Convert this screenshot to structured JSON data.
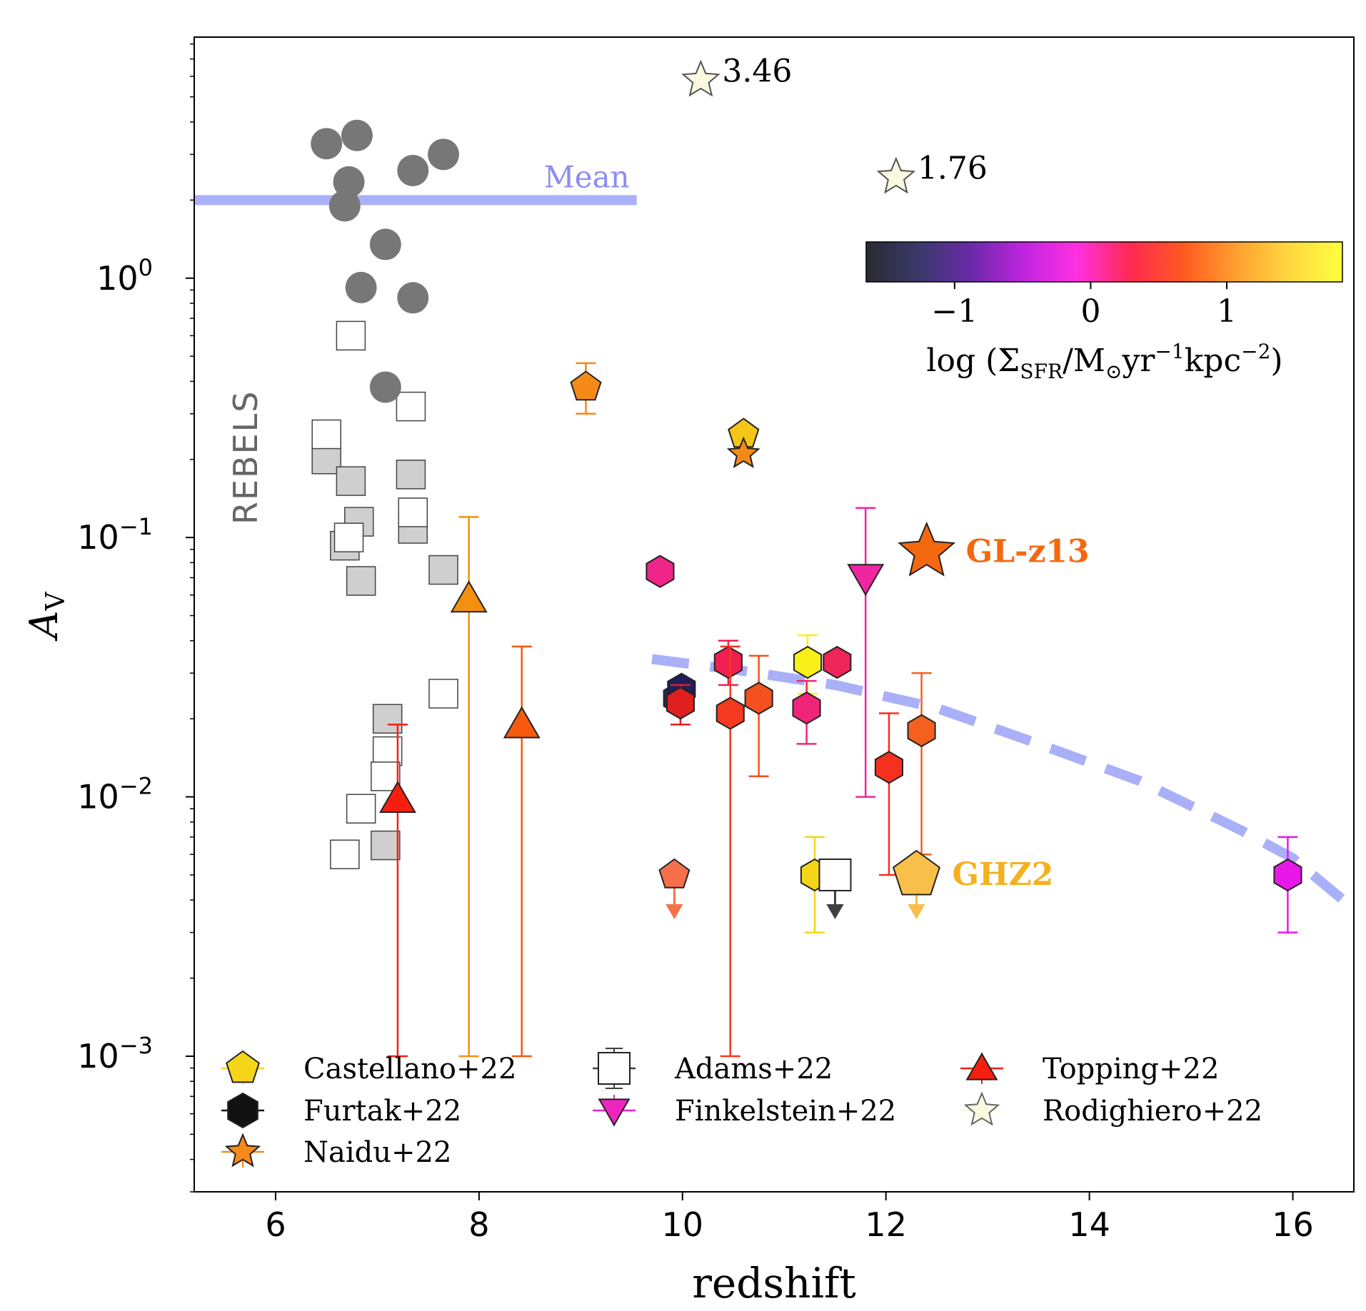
{
  "chart_data": {
    "type": "scatter",
    "title": "",
    "xlabel": "redshift",
    "ylabel": "A",
    "ylabel_sub": "V",
    "yscale": "log",
    "xlim": [
      5.2,
      16.6
    ],
    "ylim": [
      0.0003,
      8.5
    ],
    "xticks": [
      {
        "value": 6,
        "label": "6"
      },
      {
        "value": 8,
        "label": "8"
      },
      {
        "value": 10,
        "label": "10"
      },
      {
        "value": 12,
        "label": "12"
      },
      {
        "value": 14,
        "label": "14"
      },
      {
        "value": 16,
        "label": "16"
      }
    ],
    "yticks": [
      {
        "value": 1,
        "base": "10",
        "exp": "0"
      },
      {
        "value": 0.1,
        "base": "10",
        "exp": "−1"
      },
      {
        "value": 0.01,
        "base": "10",
        "exp": "−2"
      },
      {
        "value": 0.001,
        "base": "10",
        "exp": "−3"
      }
    ],
    "mean_line": {
      "label": "Mean",
      "value": 2.0,
      "x_start": 5.2,
      "x_end": 9.55,
      "color": "#aab0f8"
    },
    "model_curve": {
      "color": "#aab0f8",
      "points": [
        [
          9.7,
          0.034
        ],
        [
          10.5,
          0.031
        ],
        [
          11.5,
          0.027
        ],
        [
          12.5,
          0.022
        ],
        [
          13.5,
          0.016
        ],
        [
          14.5,
          0.0115
        ],
        [
          15.5,
          0.0074
        ],
        [
          16.0,
          0.0058
        ],
        [
          16.6,
          0.0037
        ]
      ]
    },
    "rebels_label": "REBELS",
    "rebels_circles": [
      [
        6.5,
        3.3
      ],
      [
        6.8,
        3.55
      ],
      [
        6.72,
        2.35
      ],
      [
        6.68,
        1.9
      ],
      [
        7.35,
        2.6
      ],
      [
        7.65,
        3.0
      ],
      [
        7.08,
        1.35
      ],
      [
        6.84,
        0.92
      ],
      [
        7.35,
        0.84
      ],
      [
        7.08,
        0.38
      ]
    ],
    "rebels_squares_open": [
      [
        6.74,
        0.6
      ],
      [
        7.33,
        0.32
      ],
      [
        6.5,
        0.25
      ],
      [
        7.35,
        0.125
      ],
      [
        6.72,
        0.1
      ],
      [
        7.65,
        0.025
      ],
      [
        7.1,
        0.015
      ],
      [
        7.08,
        0.012
      ],
      [
        6.84,
        0.009
      ],
      [
        6.68,
        0.006
      ]
    ],
    "rebels_squares_filled": [
      [
        6.5,
        0.2
      ],
      [
        6.74,
        0.165
      ],
      [
        7.33,
        0.175
      ],
      [
        6.82,
        0.115
      ],
      [
        7.35,
        0.108
      ],
      [
        6.68,
        0.093
      ],
      [
        6.84,
        0.068
      ],
      [
        7.65,
        0.075
      ],
      [
        7.1,
        0.02
      ],
      [
        7.08,
        0.0065
      ]
    ],
    "jwst_points": [
      {
        "survey": "Naidu+22",
        "marker": "pentagon",
        "x": 9.05,
        "y": 0.38,
        "lo": 0.3,
        "hi": 0.47,
        "color": "#f58a18"
      },
      {
        "survey": "Castellano+22",
        "marker": "pentagon",
        "x": 10.6,
        "y": 0.25,
        "color": "#f5c518"
      },
      {
        "survey": "Naidu+22",
        "marker": "star",
        "x": 10.6,
        "y": 0.21,
        "color": "#f58a18"
      },
      {
        "survey": "Topping+22",
        "marker": "triangle-up",
        "x": 7.9,
        "y": 0.058,
        "lo": 0.001,
        "hi": 0.12,
        "color": "#f5900f"
      },
      {
        "survey": "Topping+22",
        "marker": "triangle-up",
        "x": 8.42,
        "y": 0.019,
        "lo": 0.001,
        "hi": 0.038,
        "color": "#f55a0f"
      },
      {
        "survey": "Topping+22",
        "marker": "triangle-up",
        "x": 7.2,
        "y": 0.0098,
        "lo": 0.001,
        "hi": 0.019,
        "color": "#f51f0f"
      },
      {
        "survey": "Furtak+22",
        "marker": "hexagon",
        "x": 9.78,
        "y": 0.074,
        "color": "#f0258a"
      },
      {
        "survey": "Furtak+22",
        "marker": "hexagon",
        "x": 9.95,
        "y": 0.024,
        "color": "#2a2a70"
      },
      {
        "survey": "Furtak+22",
        "marker": "hexagon",
        "x": 9.99,
        "y": 0.026,
        "color": "#1f1f5a"
      },
      {
        "survey": "Furtak+22",
        "marker": "hexagon",
        "x": 9.98,
        "y": 0.023,
        "lo": 0.019,
        "hi": 0.027,
        "color": "#e01f1f"
      },
      {
        "survey": "Furtak+22",
        "marker": "hexagon",
        "x": 10.45,
        "y": 0.033,
        "lo": 0.027,
        "hi": 0.04,
        "color": "#f01f50"
      },
      {
        "survey": "Furtak+22",
        "marker": "hexagon",
        "x": 10.47,
        "y": 0.021,
        "lo": 0.001,
        "hi": 0.038,
        "color": "#f53a1f"
      },
      {
        "survey": "Furtak+22",
        "marker": "hexagon",
        "x": 10.75,
        "y": 0.024,
        "lo": 0.012,
        "hi": 0.035,
        "color": "#f5501f"
      },
      {
        "survey": "Castellano+22",
        "marker": "hexagon",
        "x": 11.23,
        "y": 0.033,
        "lo": 0.025,
        "hi": 0.042,
        "color": "#f8f018"
      },
      {
        "survey": "Furtak+22",
        "marker": "hexagon",
        "x": 11.52,
        "y": 0.033,
        "color": "#f0255a"
      },
      {
        "survey": "Furtak+22",
        "marker": "hexagon",
        "x": 11.22,
        "y": 0.022,
        "lo": 0.016,
        "hi": 0.028,
        "color": "#f0257a"
      },
      {
        "survey": "Finkelstein+22",
        "marker": "triangle-down",
        "x": 11.8,
        "y": 0.07,
        "lo": 0.01,
        "hi": 0.13,
        "color": "#f025a0"
      },
      {
        "survey": "Furtak+22",
        "marker": "hexagon",
        "x": 12.03,
        "y": 0.013,
        "lo": 0.005,
        "hi": 0.021,
        "color": "#f5301f"
      },
      {
        "survey": "Furtak+22",
        "marker": "hexagon",
        "x": 12.35,
        "y": 0.018,
        "lo": 0.006,
        "hi": 0.03,
        "color": "#f5601f"
      },
      {
        "survey": "Castellano+22",
        "marker": "pentagon",
        "x": 9.92,
        "y": 0.005,
        "upper_limit": true,
        "color": "#f5704a"
      },
      {
        "survey": "Castellano+22",
        "marker": "hexagon",
        "x": 11.3,
        "y": 0.005,
        "lo": 0.003,
        "hi": 0.007,
        "color": "#f5d518"
      },
      {
        "survey": "Adams+22",
        "marker": "square",
        "x": 11.5,
        "y": 0.005,
        "upper_limit": true,
        "color": "#404040"
      },
      {
        "survey": "Castellano+22",
        "marker": "pentagon",
        "x": 12.3,
        "y": 0.005,
        "upper_limit": true,
        "big": true,
        "color": "#f8c04a"
      },
      {
        "survey": "Furtak+22",
        "marker": "hexagon",
        "x": 15.95,
        "y": 0.005,
        "lo": 0.003,
        "hi": 0.007,
        "color": "#e818e8"
      }
    ],
    "gl_z13": {
      "label": "GL-z13",
      "x": 12.4,
      "y": 0.088,
      "color": "#f5680f",
      "label_color": "#f5680f"
    },
    "ghz2": {
      "label": "GHZ2",
      "label_color": "#f5b020"
    },
    "rodighiero_points": [
      {
        "x": 10.18,
        "y": 5.8,
        "value_label": "3.46"
      },
      {
        "x": 12.1,
        "y": 2.45,
        "value_label": "1.76"
      }
    ],
    "colorbar": {
      "label": "log (ΣSFR/M⊙yr⁻¹kpc⁻²)",
      "label_parts": {
        "pre": "log (Σ",
        "sub1": "SFR",
        "mid": "/M",
        "sun": "⊙",
        "yr": "yr",
        "sup1": "−1",
        "kpc": "kpc",
        "sup2": "−2",
        "post": ")"
      },
      "range": [
        -1.65,
        1.85
      ],
      "ticks": [
        {
          "value": -1,
          "label": "−1"
        },
        {
          "value": 0,
          "label": "0"
        },
        {
          "value": 1,
          "label": "1"
        }
      ],
      "stops": [
        "#2a2a30",
        "#3a3a6a",
        "#6a2aaa",
        "#c025e0",
        "#ff30e0",
        "#ff2a50",
        "#ff5a20",
        "#ffa030",
        "#ffd840",
        "#ffff40"
      ]
    },
    "legend": {
      "position": "bottom-left",
      "entries": [
        {
          "label": "Castellano+22",
          "marker": "pentagon",
          "color": "#f5d518",
          "line": "#f5d518"
        },
        {
          "label": "Adams+22",
          "marker": "square-open",
          "color": "#404040",
          "line": "#404040"
        },
        {
          "label": "Topping+22",
          "marker": "triangle-up",
          "color": "#f51f0f",
          "line": "#f51f0f"
        },
        {
          "label": "Furtak+22",
          "marker": "hexagon",
          "color": "#111111",
          "line": "#111111"
        },
        {
          "label": "Finkelstein+22",
          "marker": "triangle-down",
          "color": "#f025c0",
          "line": "#f025c0"
        },
        {
          "label": "Rodighiero+22",
          "marker": "star",
          "color": "#fbf8e0",
          "line": "#fbf8e0"
        },
        {
          "label": "Naidu+22",
          "marker": "star",
          "color": "#f58a18",
          "line": "#f58a18"
        }
      ]
    }
  }
}
